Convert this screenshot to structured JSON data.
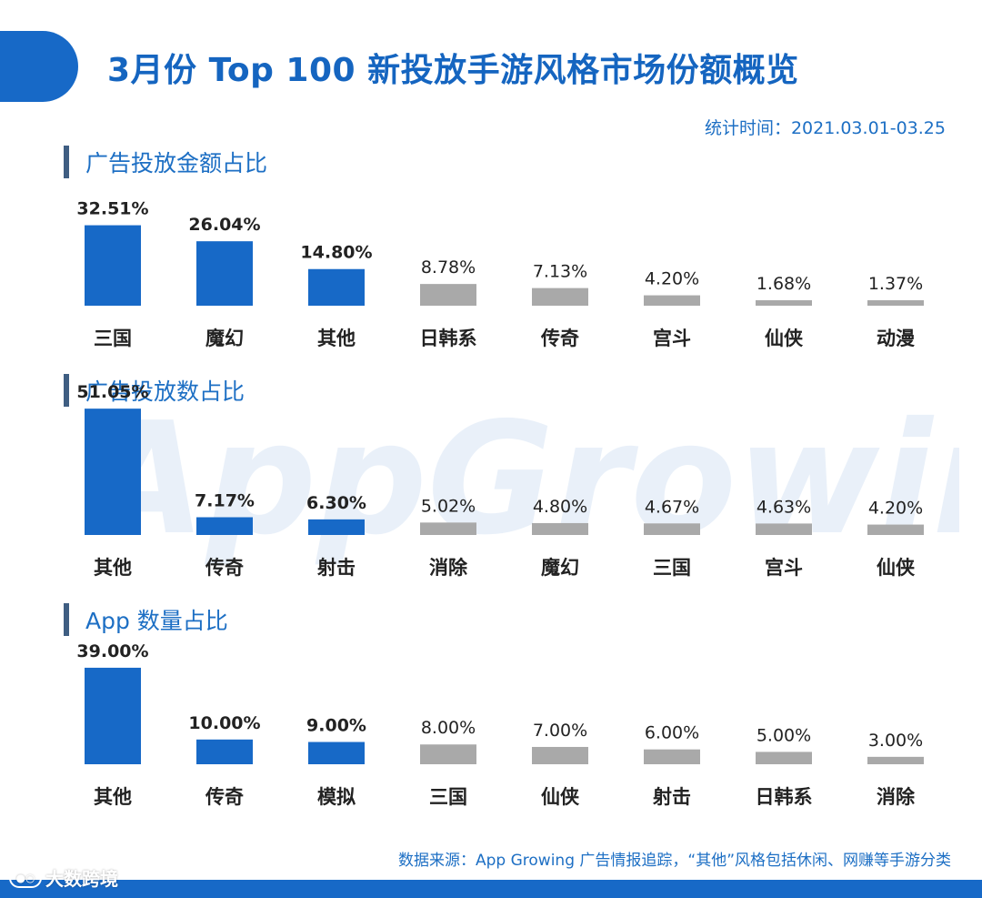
{
  "title": "3月份 Top 100 新投放手游风格市场份额概览",
  "stat_time": "统计时间：2021.03.01-03.25",
  "watermark": "AppGrowing",
  "footer_note": "数据来源：App Growing 广告情报追踪，“其他”风格包括休闲、网赚等手游分类",
  "source_mark": "大数跨境",
  "colors": {
    "accent": "#1769c7",
    "highlight_bar": "#1769c7",
    "muted_bar": "#a9a9a9",
    "section_bar": "#3f5e82"
  },
  "chart_data": [
    {
      "type": "bar",
      "title": "广告投放金额占比",
      "categories": [
        "三国",
        "魔幻",
        "其他",
        "日韩系",
        "传奇",
        "宫斗",
        "仙侠",
        "动漫"
      ],
      "values": [
        32.51,
        26.04,
        14.8,
        8.78,
        7.13,
        4.2,
        1.68,
        1.37
      ],
      "labels": [
        "32.51%",
        "26.04%",
        "14.80%",
        "8.78%",
        "7.13%",
        "4.20%",
        "1.68%",
        "1.37%"
      ],
      "highlight_count": 3,
      "unit": "%"
    },
    {
      "type": "bar",
      "title": "广告投放数占比",
      "categories": [
        "其他",
        "传奇",
        "射击",
        "消除",
        "魔幻",
        "三国",
        "宫斗",
        "仙侠"
      ],
      "values": [
        51.05,
        7.17,
        6.3,
        5.02,
        4.8,
        4.67,
        4.63,
        4.2
      ],
      "labels": [
        "51.05%",
        "7.17%",
        "6.30%",
        "5.02%",
        "4.80%",
        "4.67%",
        "4.63%",
        "4.20%"
      ],
      "highlight_count": 3,
      "unit": "%"
    },
    {
      "type": "bar",
      "title": "App 数量占比",
      "categories": [
        "其他",
        "传奇",
        "模拟",
        "三国",
        "仙侠",
        "射击",
        "日韩系",
        "消除"
      ],
      "values": [
        39.0,
        10.0,
        9.0,
        8.0,
        7.0,
        6.0,
        5.0,
        3.0
      ],
      "labels": [
        "39.00%",
        "10.00%",
        "9.00%",
        "8.00%",
        "7.00%",
        "6.00%",
        "5.00%",
        "3.00%"
      ],
      "highlight_count": 3,
      "unit": "%"
    }
  ]
}
